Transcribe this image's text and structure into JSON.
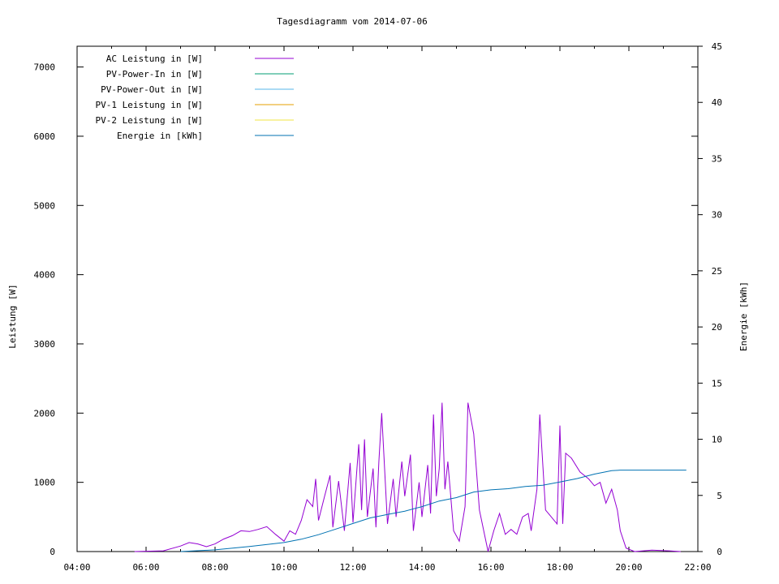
{
  "chart_data": {
    "type": "line",
    "title": "Tagesdiagramm vom 2014-07-06",
    "ylabel": "Leistung [W]",
    "y2label": "Energie [kWh]",
    "xlim": [
      "04:00",
      "22:00"
    ],
    "ylim": [
      0,
      7300
    ],
    "y2lim": [
      0,
      45
    ],
    "x_ticks": [
      "04:00",
      "06:00",
      "08:00",
      "10:00",
      "12:00",
      "14:00",
      "16:00",
      "18:00",
      "20:00",
      "22:00"
    ],
    "y_ticks": [
      0,
      1000,
      2000,
      3000,
      4000,
      5000,
      6000,
      7000
    ],
    "y2_ticks": [
      0,
      5,
      10,
      15,
      20,
      25,
      30,
      35,
      40,
      45
    ],
    "grid": false,
    "legend_position": "top-left",
    "legend": [
      {
        "label": "AC Leistung in [W]",
        "color": "#9400d3"
      },
      {
        "label": "PV-Power-In in [W]",
        "color": "#009e73"
      },
      {
        "label": "PV-Power-Out in [W]",
        "color": "#56b4e9"
      },
      {
        "label": "PV-1 Leistung in [W]",
        "color": "#e69f00"
      },
      {
        "label": "PV-2 Leistung in [W]",
        "color": "#f0e442"
      },
      {
        "label": "Energie in [kWh]",
        "color": "#0072b2"
      }
    ],
    "series": [
      {
        "name": "AC Leistung in [W]",
        "axis": "y",
        "color": "#9400d3",
        "points": [
          [
            "05:40",
            0
          ],
          [
            "06:00",
            5
          ],
          [
            "06:30",
            10
          ],
          [
            "07:00",
            80
          ],
          [
            "07:15",
            130
          ],
          [
            "07:30",
            110
          ],
          [
            "07:45",
            70
          ],
          [
            "08:00",
            110
          ],
          [
            "08:15",
            180
          ],
          [
            "08:30",
            230
          ],
          [
            "08:45",
            300
          ],
          [
            "09:00",
            290
          ],
          [
            "09:15",
            320
          ],
          [
            "09:30",
            360
          ],
          [
            "09:45",
            250
          ],
          [
            "10:00",
            150
          ],
          [
            "10:10",
            300
          ],
          [
            "10:20",
            250
          ],
          [
            "10:30",
            450
          ],
          [
            "10:40",
            750
          ],
          [
            "10:50",
            650
          ],
          [
            "10:55",
            1050
          ],
          [
            "11:00",
            450
          ],
          [
            "11:10",
            780
          ],
          [
            "11:20",
            1100
          ],
          [
            "11:25",
            350
          ],
          [
            "11:35",
            1020
          ],
          [
            "11:45",
            300
          ],
          [
            "11:55",
            1280
          ],
          [
            "12:00",
            420
          ],
          [
            "12:10",
            1550
          ],
          [
            "12:15",
            600
          ],
          [
            "12:20",
            1620
          ],
          [
            "12:25",
            500
          ],
          [
            "12:35",
            1200
          ],
          [
            "12:40",
            350
          ],
          [
            "12:45",
            1300
          ],
          [
            "12:50",
            2000
          ],
          [
            "13:00",
            400
          ],
          [
            "13:10",
            1050
          ],
          [
            "13:15",
            500
          ],
          [
            "13:25",
            1300
          ],
          [
            "13:30",
            800
          ],
          [
            "13:40",
            1400
          ],
          [
            "13:45",
            300
          ],
          [
            "13:55",
            1000
          ],
          [
            "14:00",
            500
          ],
          [
            "14:10",
            1250
          ],
          [
            "14:15",
            550
          ],
          [
            "14:20",
            1980
          ],
          [
            "14:25",
            800
          ],
          [
            "14:30",
            1200
          ],
          [
            "14:35",
            2150
          ],
          [
            "14:40",
            900
          ],
          [
            "14:45",
            1300
          ],
          [
            "14:55",
            300
          ],
          [
            "15:05",
            150
          ],
          [
            "15:15",
            650
          ],
          [
            "15:20",
            2150
          ],
          [
            "15:30",
            1700
          ],
          [
            "15:40",
            600
          ],
          [
            "15:50",
            200
          ],
          [
            "15:55",
            0
          ],
          [
            "16:05",
            300
          ],
          [
            "16:15",
            550
          ],
          [
            "16:25",
            250
          ],
          [
            "16:35",
            320
          ],
          [
            "16:45",
            250
          ],
          [
            "16:55",
            500
          ],
          [
            "17:05",
            550
          ],
          [
            "17:10",
            300
          ],
          [
            "17:20",
            900
          ],
          [
            "17:25",
            1980
          ],
          [
            "17:35",
            600
          ],
          [
            "17:45",
            500
          ],
          [
            "17:55",
            400
          ],
          [
            "18:00",
            1820
          ],
          [
            "18:05",
            400
          ],
          [
            "18:10",
            1420
          ],
          [
            "18:20",
            1350
          ],
          [
            "18:35",
            1150
          ],
          [
            "18:50",
            1050
          ],
          [
            "19:00",
            950
          ],
          [
            "19:10",
            1000
          ],
          [
            "19:20",
            700
          ],
          [
            "19:30",
            900
          ],
          [
            "19:40",
            600
          ],
          [
            "19:45",
            300
          ],
          [
            "19:55",
            50
          ],
          [
            "20:10",
            0
          ],
          [
            "20:40",
            20
          ],
          [
            "21:10",
            10
          ],
          [
            "21:30",
            0
          ]
        ]
      },
      {
        "name": "Energie in [kWh]",
        "axis": "y2",
        "color": "#0072b2",
        "points": [
          [
            "07:00",
            0
          ],
          [
            "08:00",
            0.15
          ],
          [
            "09:00",
            0.45
          ],
          [
            "10:00",
            0.8
          ],
          [
            "10:30",
            1.1
          ],
          [
            "11:00",
            1.5
          ],
          [
            "11:30",
            2
          ],
          [
            "12:00",
            2.5
          ],
          [
            "12:30",
            3
          ],
          [
            "13:00",
            3.3
          ],
          [
            "13:30",
            3.6
          ],
          [
            "14:00",
            4
          ],
          [
            "14:30",
            4.5
          ],
          [
            "15:00",
            4.8
          ],
          [
            "15:30",
            5.3
          ],
          [
            "16:00",
            5.5
          ],
          [
            "16:30",
            5.6
          ],
          [
            "17:00",
            5.8
          ],
          [
            "17:30",
            5.9
          ],
          [
            "18:00",
            6.2
          ],
          [
            "18:30",
            6.5
          ],
          [
            "19:00",
            6.9
          ],
          [
            "19:30",
            7.2
          ],
          [
            "19:45",
            7.25
          ],
          [
            "20:00",
            7.25
          ],
          [
            "21:00",
            7.25
          ],
          [
            "21:40",
            7.25
          ]
        ]
      }
    ]
  }
}
